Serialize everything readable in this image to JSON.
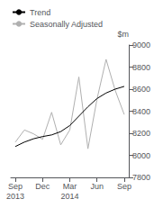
{
  "chart_data": {
    "type": "line",
    "ylabel": "$m",
    "categories": [
      "Sep\n2013",
      null,
      null,
      "Dec",
      null,
      null,
      "Mar\n2014",
      null,
      null,
      "Jun",
      null,
      null,
      "Sep"
    ],
    "series": [
      {
        "name": "Trend",
        "color": "#000000",
        "values": [
          8080,
          8120,
          8150,
          8170,
          8185,
          8215,
          8270,
          8355,
          8440,
          8515,
          8565,
          8600,
          8625
        ]
      },
      {
        "name": "Seasonally Adjusted",
        "color": "#b0b0b0",
        "values": [
          8120,
          8230,
          8195,
          8145,
          8390,
          8095,
          8230,
          8710,
          8060,
          8510,
          8870,
          8590,
          8370
        ]
      }
    ],
    "ylim": [
      7800,
      9000
    ],
    "yticks": [
      7800,
      8000,
      8200,
      8400,
      8600,
      8800,
      9000
    ],
    "grid": false,
    "legend": "upper left"
  }
}
